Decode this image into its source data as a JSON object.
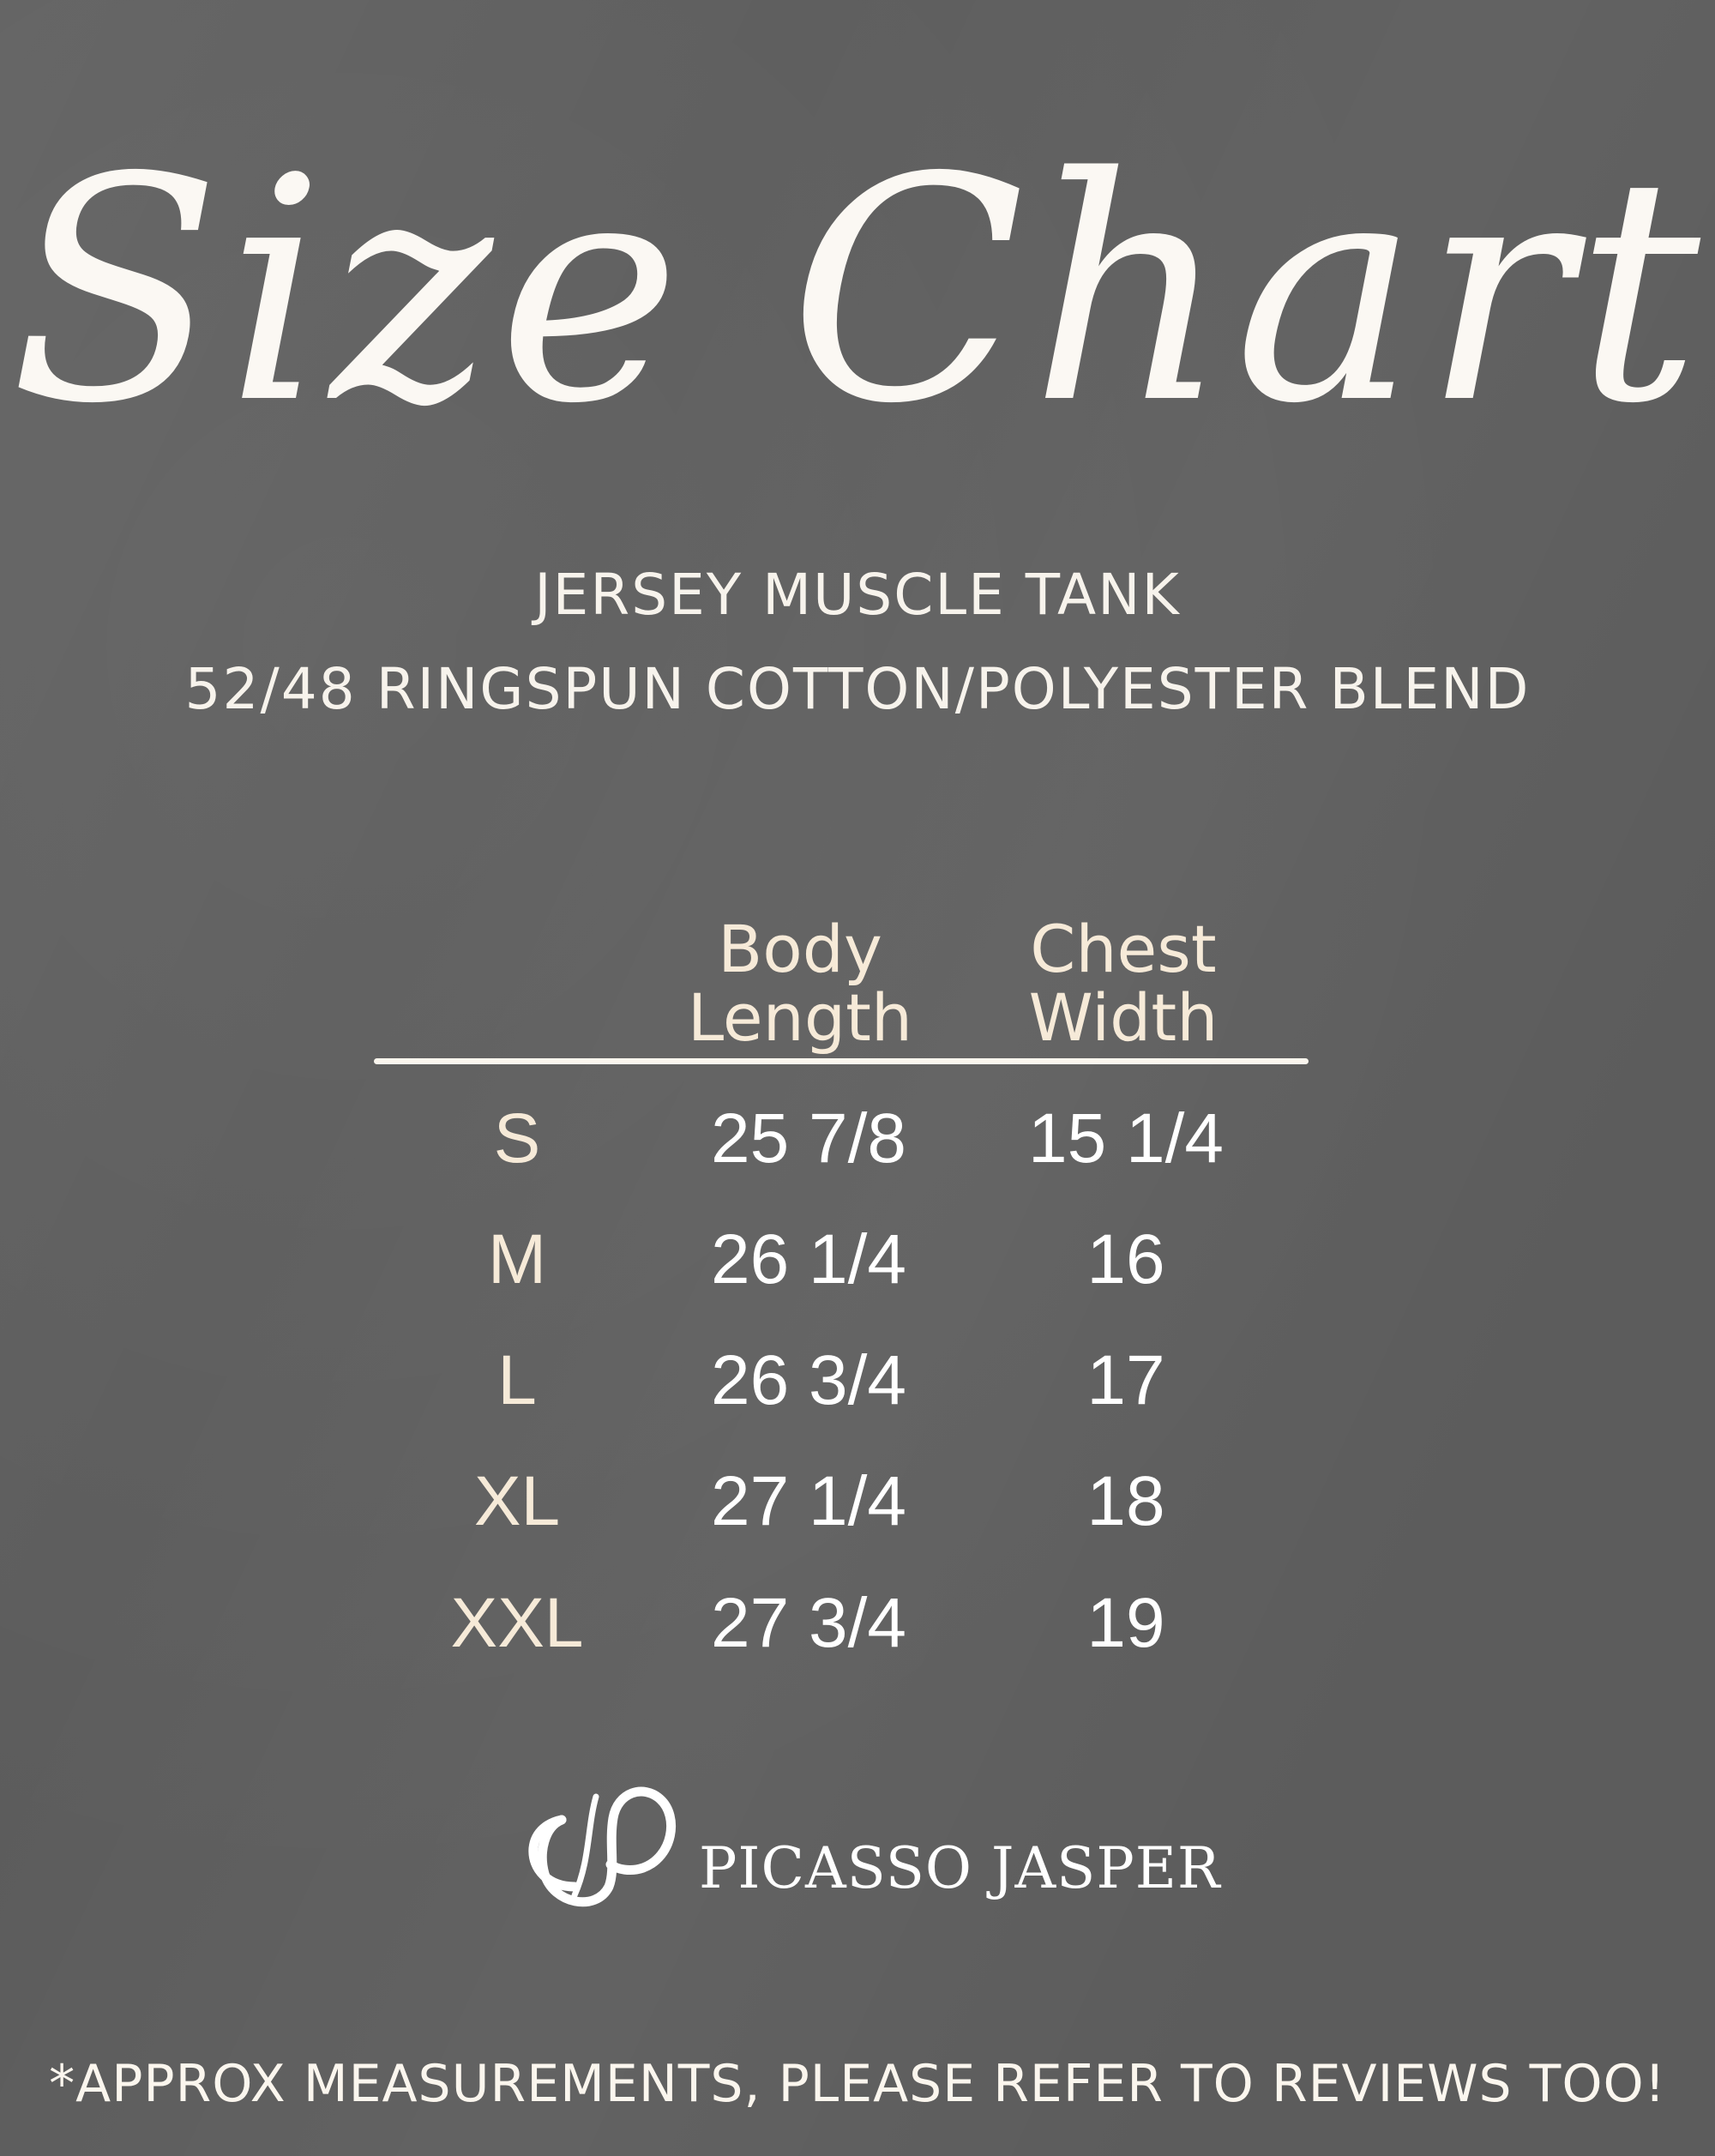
{
  "title": "Size Chart",
  "subtitle": {
    "line1": "JERSEY MUSCLE TANK",
    "line2": "52/48 RINGSPUN COTTON/POLYESTER BLEND"
  },
  "table": {
    "headers": [
      {
        "line1": "Body",
        "line2": "Length"
      },
      {
        "line1": "Chest",
        "line2": "Width"
      }
    ],
    "rows": [
      {
        "size": "S",
        "body_length": "25 7/8",
        "chest_width": "15 1/4"
      },
      {
        "size": "M",
        "body_length": "26 1/4",
        "chest_width": "16"
      },
      {
        "size": "L",
        "body_length": "26 3/4",
        "chest_width": "17"
      },
      {
        "size": "XL",
        "body_length": "27 1/4",
        "chest_width": "18"
      },
      {
        "size": "XXL",
        "body_length": "27 3/4",
        "chest_width": "19"
      }
    ]
  },
  "brand": {
    "name": "PICASSO JASPER",
    "logo_icon": "pj-monogram-logo"
  },
  "footnote": "*APPROX MEASUREMENTS, PLEASE REFER TO REVIEWS TOO!",
  "colors": {
    "background": "#5c5c5c",
    "header_text": "#f6ead8",
    "value_text": "#ffffff"
  }
}
